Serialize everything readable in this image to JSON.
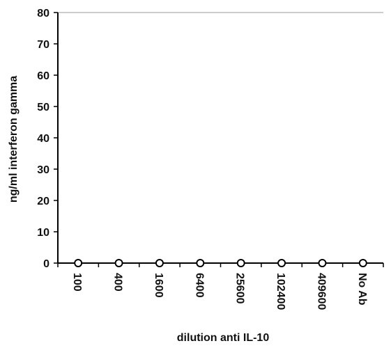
{
  "chart_data": {
    "type": "line",
    "xlabel": "dilution anti IL-10",
    "ylabel": "ng/ml interferon gamma",
    "categories": [
      "100",
      "400",
      "1600",
      "6400",
      "25600",
      "102400",
      "409600",
      "No Ab"
    ],
    "series": [
      {
        "name": "interferon gamma",
        "color": "#000000",
        "values": [
          0,
          0,
          0,
          0,
          0,
          0,
          0,
          0
        ]
      }
    ],
    "ylim": [
      0,
      80
    ],
    "yticks": [
      0,
      10,
      20,
      30,
      40,
      50,
      60,
      70,
      80
    ]
  }
}
